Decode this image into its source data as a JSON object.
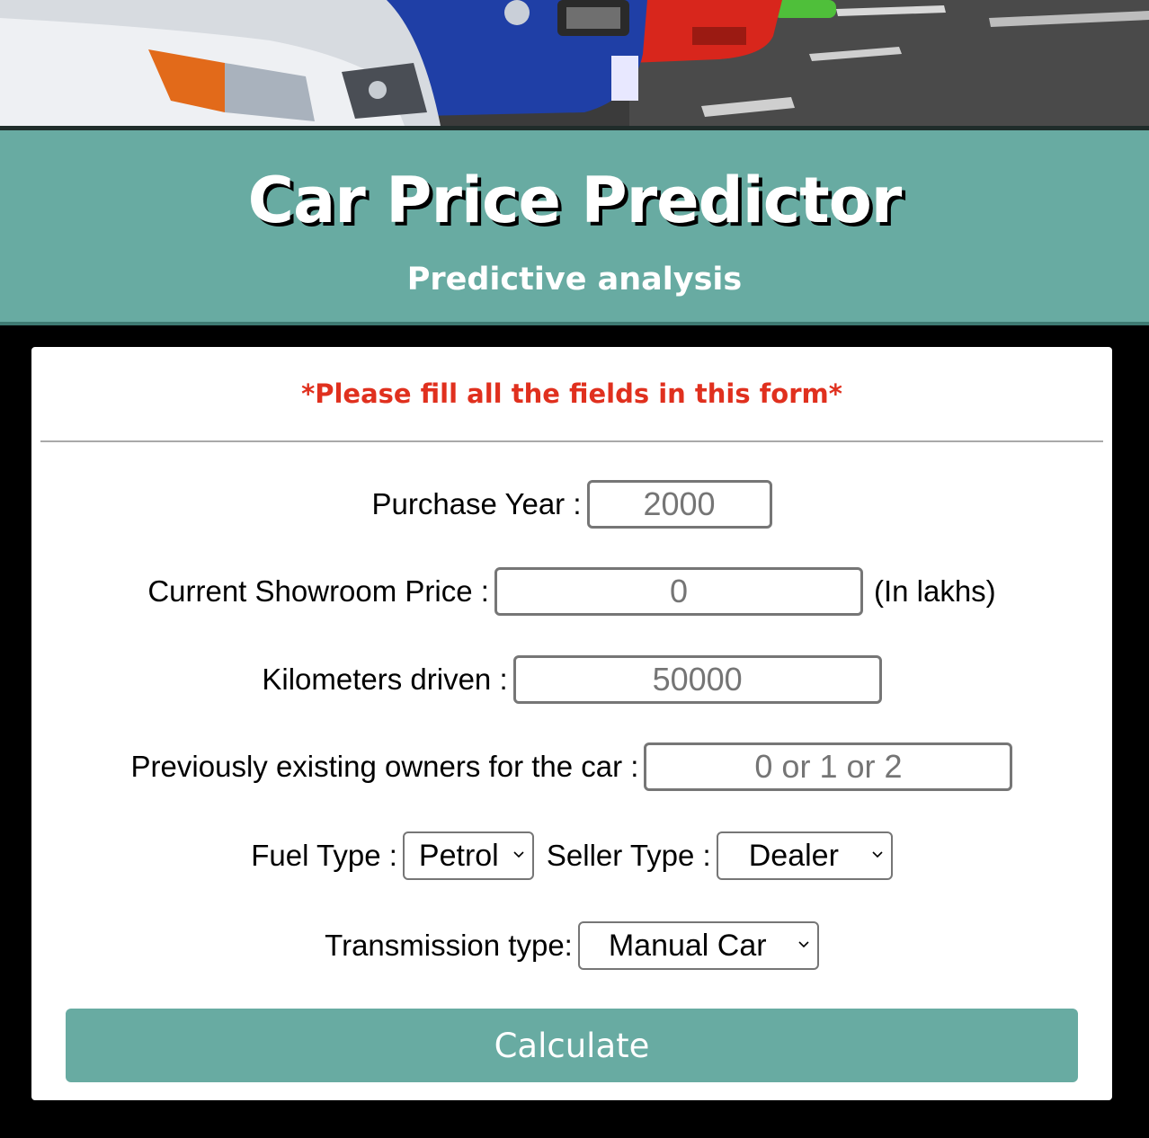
{
  "header": {
    "title": "Car Price Predictor",
    "subtitle": "Predictive analysis"
  },
  "form": {
    "notice": "*Please fill all the fields in this form*",
    "purchase_year": {
      "label": "Purchase Year :",
      "placeholder": "2000"
    },
    "showroom_price": {
      "label": "Current Showroom Price :",
      "placeholder": "0",
      "suffix": "(In lakhs)"
    },
    "kms_driven": {
      "label": "Kilometers driven :",
      "placeholder": "50000"
    },
    "owners": {
      "label": "Previously existing owners for the car :",
      "placeholder": "0 or 1 or 2"
    },
    "fuel_type": {
      "label": "Fuel Type :",
      "selected": "Petrol"
    },
    "seller_type": {
      "label": "Seller Type :",
      "selected": "Dealer"
    },
    "transmission": {
      "label": "Transmission type:",
      "selected": "Manual Car"
    },
    "submit_label": "Calculate"
  },
  "colors": {
    "accent": "#68aba2",
    "warning": "#e0301e"
  }
}
